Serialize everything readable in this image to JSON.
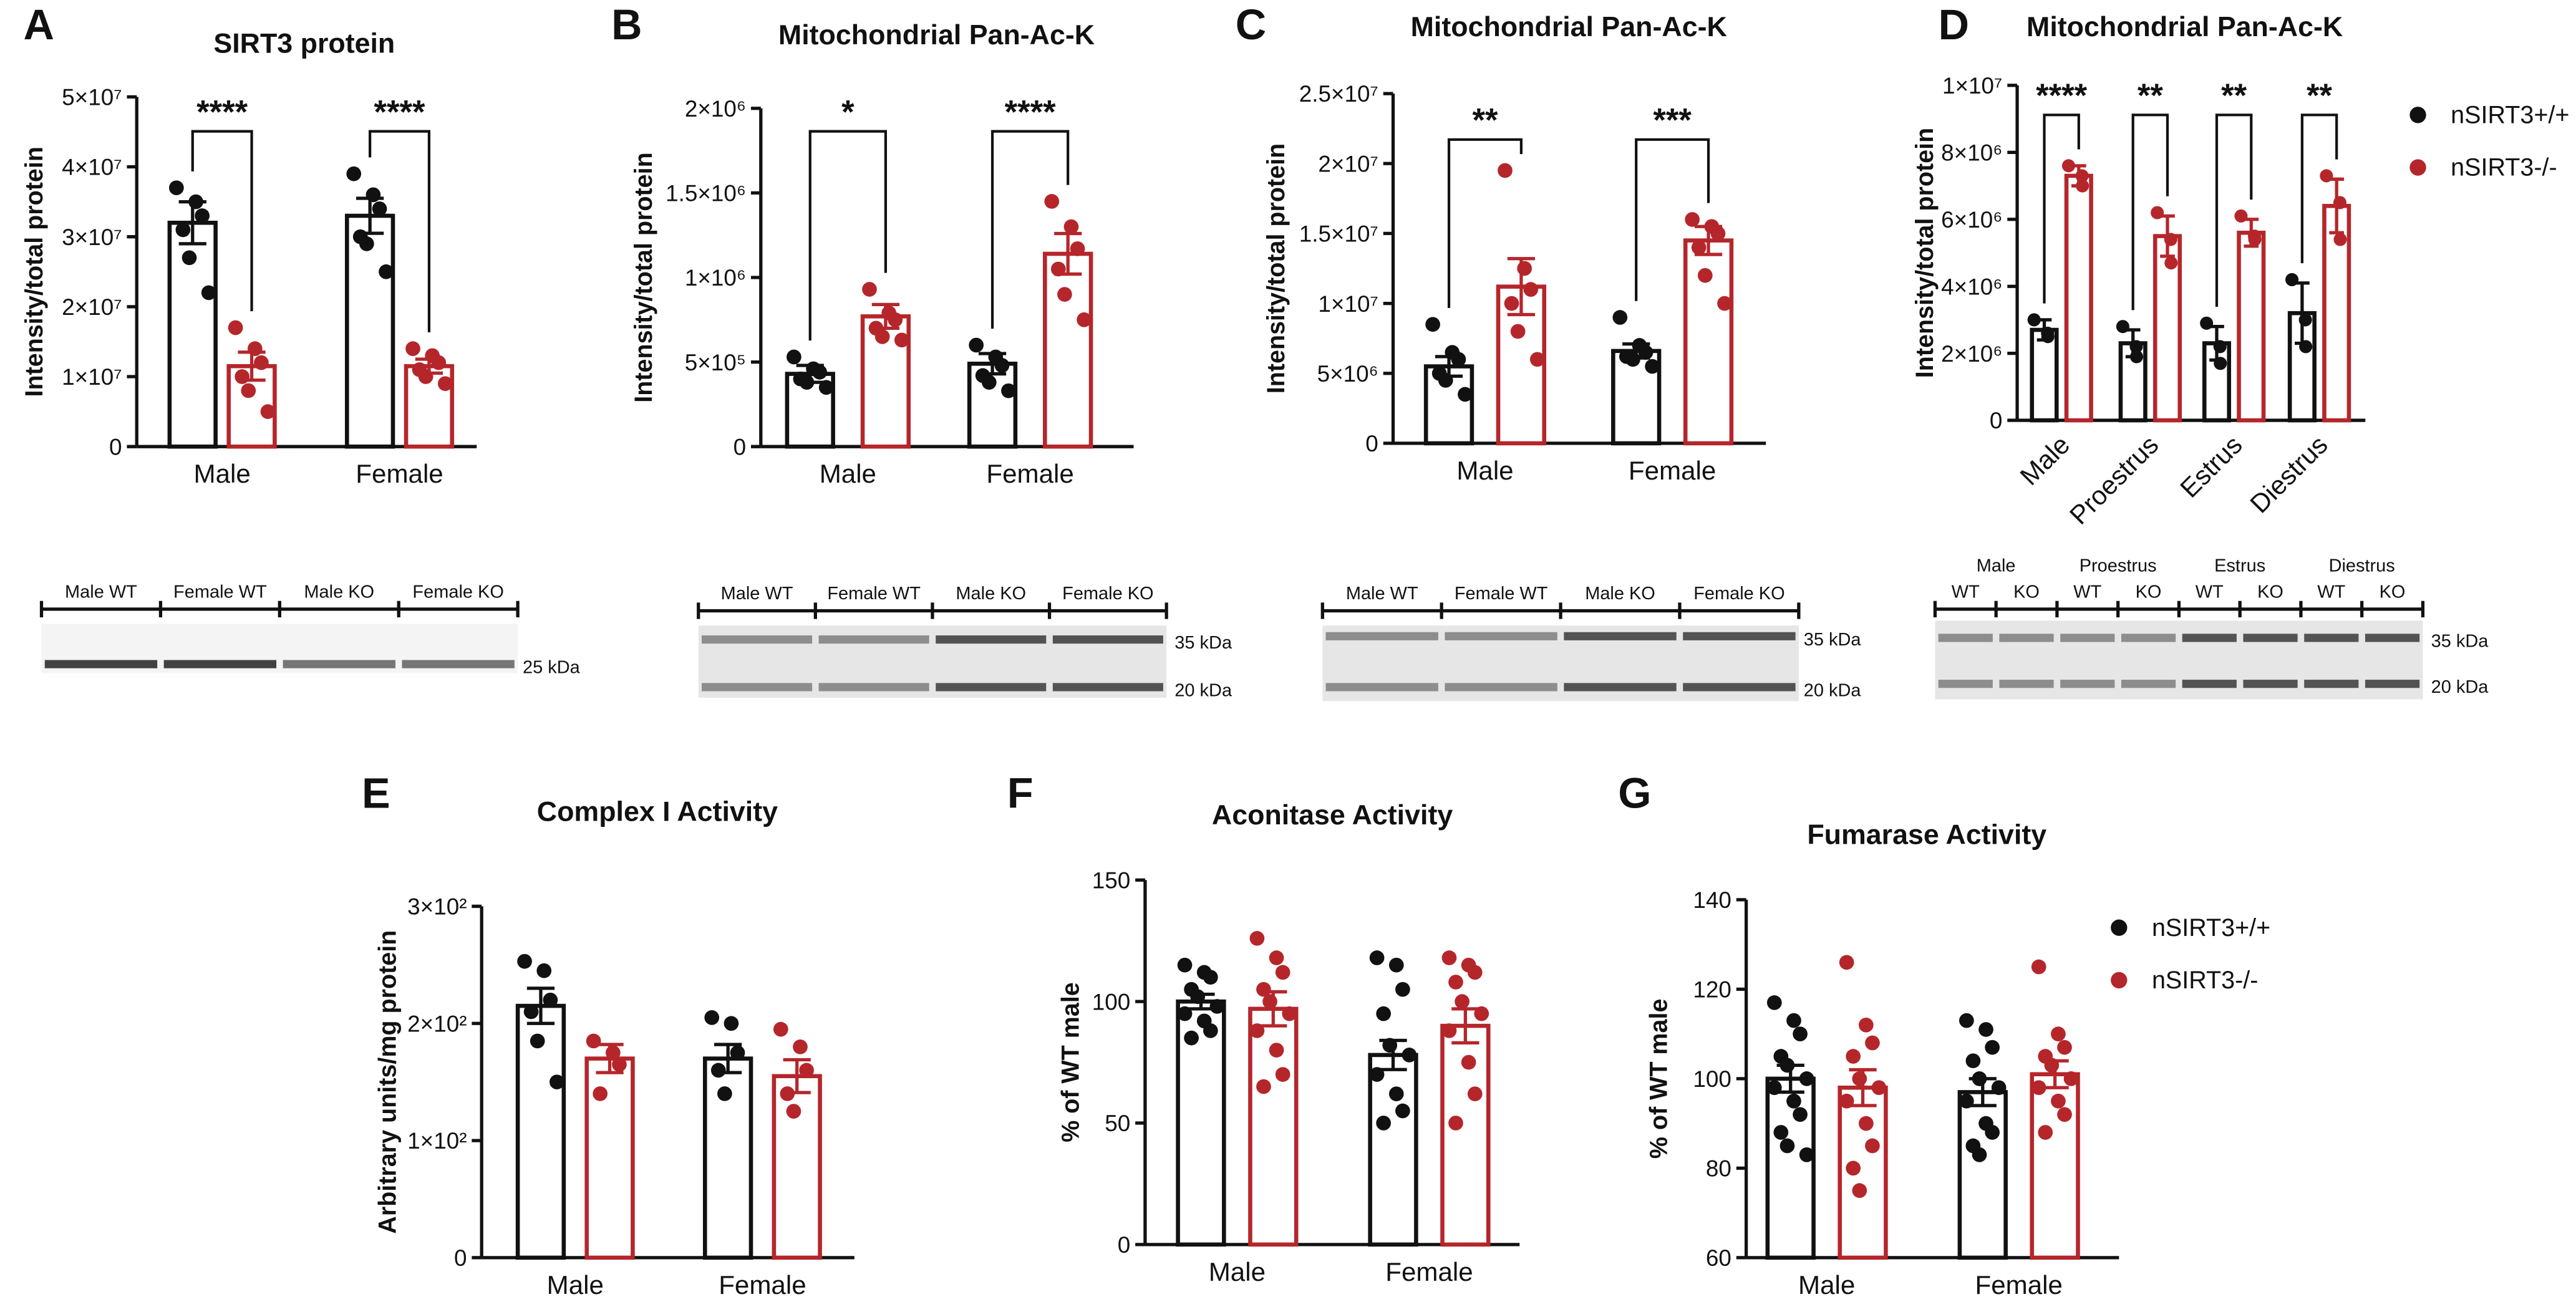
{
  "chart_data": [
    {
      "type": "bar",
      "letter": "A",
      "title": "SIRT3 protein",
      "ylabel": "Intensity/total protein",
      "categories": [
        "Male",
        "Female"
      ],
      "ylim": [
        0,
        50000000
      ],
      "yticks": [
        0,
        {
          "value": 10000000,
          "label": "1×10⁷"
        },
        {
          "value": 20000000,
          "label": "2×10⁷"
        },
        {
          "value": 30000000,
          "label": "3×10⁷"
        },
        {
          "value": 40000000,
          "label": "4×10⁷"
        },
        {
          "value": 50000000,
          "label": "5×10⁷"
        }
      ],
      "series": [
        {
          "color": "#111111",
          "values": [
            32000000,
            33000000
          ],
          "errors": [
            3000000,
            2500000
          ],
          "points": [
            [
              37000000,
              35000000,
              33000000,
              31000000,
              27000000,
              22000000
            ],
            [
              39000000,
              36000000,
              34000000,
              30000000,
              29000000,
              25000000
            ]
          ]
        },
        {
          "color": "#b5262b",
          "values": [
            11500000,
            11500000
          ],
          "errors": [
            2000000,
            1000000
          ],
          "points": [
            [
              17000000,
              14000000,
              12000000,
              10000000,
              8000000,
              5000000
            ],
            [
              14000000,
              13000000,
              12000000,
              11000000,
              10000000,
              9000000
            ]
          ]
        }
      ],
      "annotations": [
        "****",
        "****"
      ],
      "blot": {
        "lanes": [
          "Male WT",
          "Female WT",
          "Male KO",
          "Female KO"
        ],
        "markers": [
          "25 kDa"
        ]
      }
    },
    {
      "type": "bar",
      "letter": "B",
      "title": "Mitochondrial Pan-Ac-K",
      "ylabel": "Intensity/total protein",
      "categories": [
        "Male",
        "Female"
      ],
      "ylim": [
        0,
        2000000
      ],
      "yticks": [
        0,
        {
          "value": 500000,
          "label": "5×10⁵"
        },
        {
          "value": 1000000,
          "label": "1×10⁶"
        },
        {
          "value": 1500000,
          "label": "1.5×10⁶"
        },
        {
          "value": 2000000,
          "label": "2×10⁶"
        }
      ],
      "series": [
        {
          "color": "#111111",
          "values": [
            430000,
            490000
          ],
          "errors": [
            50000,
            60000
          ],
          "points": [
            [
              530000,
              460000,
              440000,
              400000,
              380000,
              350000
            ],
            [
              600000,
              530000,
              480000,
              420000,
              380000,
              330000
            ]
          ]
        },
        {
          "color": "#b5262b",
          "values": [
            770000,
            1140000
          ],
          "errors": [
            70000,
            120000
          ],
          "points": [
            [
              930000,
              790000,
              750000,
              700000,
              650000,
              630000
            ],
            [
              1450000,
              1300000,
              1170000,
              1050000,
              900000,
              750000
            ]
          ]
        }
      ],
      "annotations": [
        "*",
        "****"
      ],
      "blot": {
        "lanes": [
          "Male WT",
          "Female WT",
          "Male KO",
          "Female KO"
        ],
        "markers": [
          "35 kDa",
          "20 kDa"
        ]
      }
    },
    {
      "type": "bar",
      "letter": "C",
      "title": "Mitochondrial Pan-Ac-K",
      "ylabel": "Intensity/total protein",
      "categories": [
        "Male",
        "Female"
      ],
      "ylim": [
        0,
        25000000
      ],
      "yticks": [
        0,
        {
          "value": 5000000,
          "label": "5×10⁶"
        },
        {
          "value": 10000000,
          "label": "1×10⁷"
        },
        {
          "value": 15000000,
          "label": "1.5×10⁷"
        },
        {
          "value": 20000000,
          "label": "2×10⁷"
        },
        {
          "value": 25000000,
          "label": "2.5×10⁷"
        }
      ],
      "series": [
        {
          "color": "#111111",
          "values": [
            5500000,
            6600000
          ],
          "errors": [
            700000,
            500000
          ],
          "points": [
            [
              8500000,
              6500000,
              6000000,
              5000000,
              4500000,
              3500000
            ],
            [
              9000000,
              7000000,
              6500000,
              6200000,
              6000000,
              5500000
            ]
          ]
        },
        {
          "color": "#b5262b",
          "values": [
            11200000,
            14500000
          ],
          "errors": [
            2000000,
            1000000
          ],
          "points": [
            [
              19500000,
              12500000,
              11000000,
              10000000,
              8000000,
              6000000
            ],
            [
              16000000,
              15500000,
              15000000,
              14000000,
              12000000,
              10000000
            ]
          ]
        }
      ],
      "annotations": [
        "**",
        "***"
      ],
      "blot": {
        "lanes": [
          "Male WT",
          "Female WT",
          "Male KO",
          "Female KO"
        ],
        "markers": [
          "35 kDa",
          "20 kDa"
        ]
      }
    },
    {
      "type": "bar",
      "letter": "D",
      "title": "Mitochondrial Pan-Ac-K",
      "ylabel": "Intensity/total protein",
      "categories": [
        "Male",
        "Proestrus",
        "Estrus",
        "Diestrus"
      ],
      "ylim": [
        0,
        10000000
      ],
      "yticks": [
        0,
        {
          "value": 2000000,
          "label": "2×10⁶"
        },
        {
          "value": 4000000,
          "label": "4×10⁶"
        },
        {
          "value": 6000000,
          "label": "6×10⁶"
        },
        {
          "value": 8000000,
          "label": "8×10⁶"
        },
        {
          "value": 10000000,
          "label": "1×10⁷"
        }
      ],
      "legend": "right",
      "series": [
        {
          "name": "nSIRT3+/+",
          "color": "#111111",
          "values": [
            2700000,
            2300000,
            2300000,
            3200000
          ],
          "errors": [
            300000,
            400000,
            500000,
            900000
          ],
          "points": [
            [
              3000000,
              2600000,
              2500000
            ],
            [
              2800000,
              2200000,
              1900000
            ],
            [
              2900000,
              2200000,
              1700000
            ],
            [
              4200000,
              3000000,
              2200000
            ]
          ]
        },
        {
          "name": "nSIRT3-/-",
          "color": "#b5262b",
          "values": [
            7300000,
            5500000,
            5600000,
            6400000
          ],
          "errors": [
            300000,
            600000,
            400000,
            800000
          ],
          "points": [
            [
              7600000,
              7300000,
              7000000
            ],
            [
              6200000,
              5400000,
              4700000
            ],
            [
              6100000,
              5500000,
              5400000
            ],
            [
              7300000,
              6500000,
              5400000
            ]
          ]
        }
      ],
      "annotations": [
        "****",
        "**",
        "**",
        "**"
      ],
      "blot": {
        "groups": [
          "Male",
          "Proestrus",
          "Estrus",
          "Diestrus"
        ],
        "lanes": [
          "WT",
          "KO",
          "WT",
          "KO",
          "WT",
          "KO",
          "WT",
          "KO"
        ],
        "markers": [
          "35 kDa",
          "20 kDa"
        ]
      }
    },
    {
      "type": "bar",
      "letter": "E",
      "title": "Complex I Activity",
      "ylabel": "Arbitrary units/mg protein",
      "categories": [
        "Male",
        "Female"
      ],
      "ylim": [
        0,
        300
      ],
      "yticks": [
        0,
        {
          "value": 100,
          "label": "1×10²"
        },
        {
          "value": 200,
          "label": "2×10²"
        },
        {
          "value": 300,
          "label": "3×10²"
        }
      ],
      "series": [
        {
          "color": "#111111",
          "values": [
            215,
            170
          ],
          "errors": [
            15,
            12
          ],
          "points": [
            [
              253,
              245,
              220,
              210,
              185,
              150
            ],
            [
              205,
              200,
              175,
              160,
              140
            ]
          ]
        },
        {
          "color": "#b5262b",
          "values": [
            170,
            155
          ],
          "errors": [
            12,
            14
          ],
          "points": [
            [
              185,
              175,
              165,
              140
            ],
            [
              195,
              180,
              160,
              140,
              125
            ]
          ]
        }
      ]
    },
    {
      "type": "bar",
      "letter": "F",
      "title": "Aconitase Activity",
      "ylabel": "% of WT male",
      "categories": [
        "Male",
        "Female"
      ],
      "ylim": [
        0,
        150
      ],
      "yticks": [
        0,
        50,
        100,
        150
      ],
      "series": [
        {
          "color": "#111111",
          "values": [
            100,
            78
          ],
          "errors": [
            3,
            6
          ],
          "points": [
            [
              115,
              112,
              110,
              105,
              102,
              98,
              95,
              92,
              88,
              85
            ],
            [
              118,
              115,
              105,
              95,
              82,
              78,
              70,
              62,
              55,
              50
            ]
          ]
        },
        {
          "color": "#b5262b",
          "values": [
            97,
            90
          ],
          "errors": [
            7,
            7
          ],
          "points": [
            [
              126,
              118,
              112,
              105,
              100,
              95,
              88,
              80,
              70,
              65
            ],
            [
              118,
              115,
              112,
              108,
              100,
              95,
              88,
              75,
              62,
              50
            ]
          ]
        }
      ]
    },
    {
      "type": "bar",
      "letter": "G",
      "title": "Fumarase Activity",
      "ylabel": "% of WT male",
      "categories": [
        "Male",
        "Female"
      ],
      "ylim": [
        60,
        140
      ],
      "yticks": [
        60,
        80,
        100,
        120,
        140
      ],
      "legend": "right",
      "series": [
        {
          "name": "nSIRT3+/+",
          "color": "#111111",
          "values": [
            100,
            97
          ],
          "errors": [
            3,
            3
          ],
          "points": [
            [
              117,
              113,
              110,
              105,
              103,
              100,
              98,
              95,
              92,
              88,
              85,
              83
            ],
            [
              113,
              111,
              107,
              104,
              100,
              98,
              95,
              90,
              88,
              85,
              83
            ]
          ]
        },
        {
          "name": "nSIRT3-/-",
          "color": "#b5262b",
          "values": [
            98,
            101
          ],
          "errors": [
            4,
            3
          ],
          "points": [
            [
              126,
              112,
              108,
              105,
              100,
              98,
              95,
              90,
              85,
              80,
              75
            ],
            [
              125,
              110,
              107,
              105,
              103,
              100,
              98,
              95,
              92,
              88
            ]
          ]
        }
      ]
    }
  ]
}
